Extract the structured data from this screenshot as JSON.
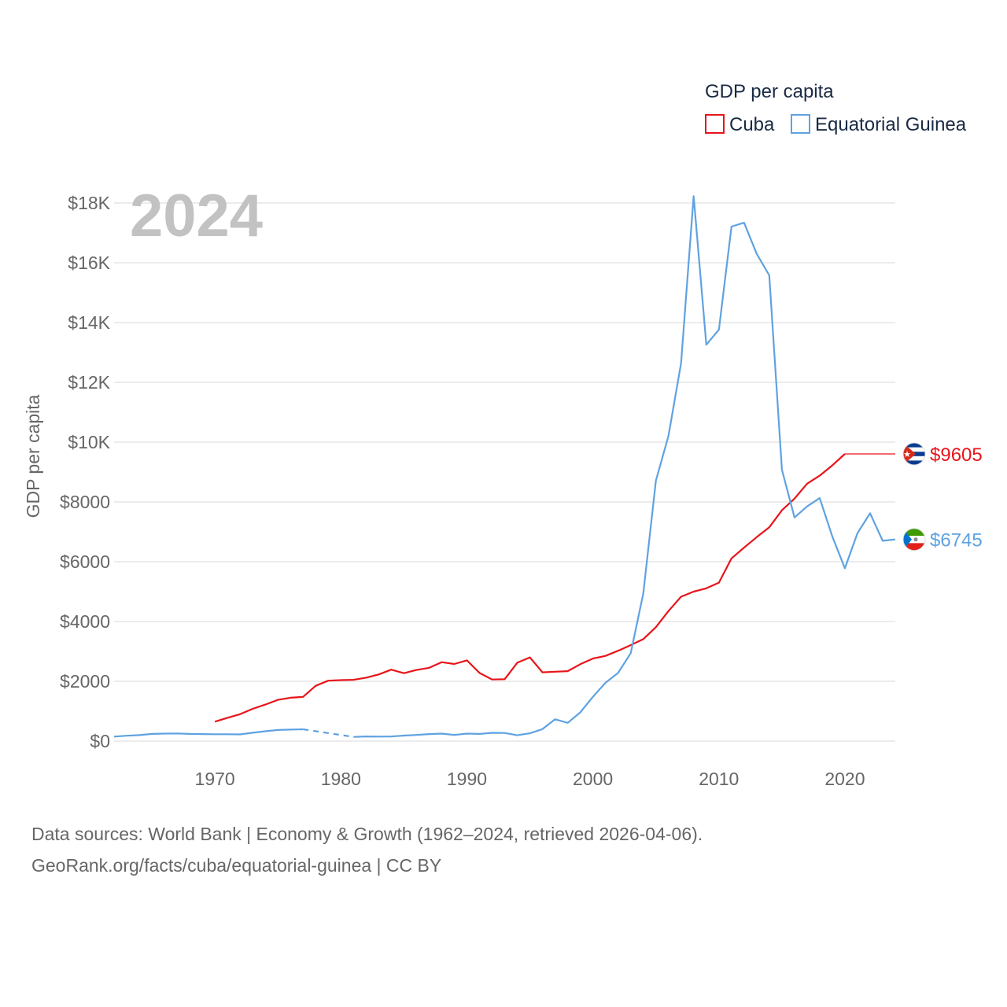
{
  "chart_data": {
    "type": "line",
    "title": "GDP per capita",
    "ylabel": "GDP per capita",
    "xlabel": "",
    "watermark_year": "2024",
    "xlim": [
      1962,
      2024
    ],
    "ylim": [
      0,
      18000
    ],
    "x_ticks": [
      1970,
      1980,
      1990,
      2000,
      2010,
      2020
    ],
    "y_ticks": [
      {
        "value": 0,
        "label": "$0"
      },
      {
        "value": 2000,
        "label": "$2000"
      },
      {
        "value": 4000,
        "label": "$4000"
      },
      {
        "value": 6000,
        "label": "$6000"
      },
      {
        "value": 8000,
        "label": "$8000"
      },
      {
        "value": 10000,
        "label": "$10K"
      },
      {
        "value": 12000,
        "label": "$12K"
      },
      {
        "value": 14000,
        "label": "$14K"
      },
      {
        "value": 16000,
        "label": "$16K"
      },
      {
        "value": 18000,
        "label": "$18K"
      }
    ],
    "grid": true,
    "legend_position": "top-right",
    "series": [
      {
        "name": "Cuba",
        "color": "#e8141a",
        "end_label": "$9605",
        "flag_icon": "cuba-flag-icon",
        "x": [
          1970,
          1971,
          1972,
          1973,
          1974,
          1975,
          1976,
          1977,
          1978,
          1979,
          1980,
          1981,
          1982,
          1983,
          1984,
          1985,
          1986,
          1987,
          1988,
          1989,
          1990,
          1991,
          1992,
          1993,
          1994,
          1995,
          1996,
          1997,
          1998,
          1999,
          2000,
          2001,
          2002,
          2003,
          2004,
          2005,
          2006,
          2007,
          2008,
          2009,
          2010,
          2011,
          2012,
          2013,
          2014,
          2015,
          2016,
          2017,
          2018,
          2019,
          2020
        ],
        "values": [
          650,
          780,
          900,
          1080,
          1220,
          1380,
          1450,
          1480,
          1850,
          2020,
          2040,
          2050,
          2120,
          2230,
          2390,
          2270,
          2380,
          2450,
          2640,
          2580,
          2700,
          2280,
          2060,
          2070,
          2620,
          2800,
          2300,
          2320,
          2340,
          2570,
          2760,
          2850,
          3020,
          3210,
          3410,
          3810,
          4350,
          4830,
          5000,
          5110,
          5300,
          6110,
          6470,
          6820,
          7150,
          7720,
          8110,
          8610,
          8880,
          9220,
          9605
        ],
        "extend_to": 2024
      },
      {
        "name": "Equatorial Guinea",
        "color": "#5fa2e1",
        "end_label": "$6745",
        "flag_icon": "equatorial-guinea-flag-icon",
        "x": [
          1962,
          1963,
          1964,
          1965,
          1966,
          1967,
          1968,
          1969,
          1970,
          1971,
          1972,
          1973,
          1974,
          1975,
          1976,
          1977,
          1981,
          1982,
          1983,
          1984,
          1985,
          1986,
          1987,
          1988,
          1989,
          1990,
          1991,
          1992,
          1993,
          1994,
          1995,
          1996,
          1997,
          1998,
          1999,
          2000,
          2001,
          2002,
          2003,
          2004,
          2005,
          2006,
          2007,
          2008,
          2009,
          2010,
          2011,
          2012,
          2013,
          2014,
          2015,
          2016,
          2017,
          2018,
          2019,
          2020,
          2021,
          2022,
          2023,
          2024
        ],
        "values": [
          150,
          180,
          200,
          240,
          250,
          255,
          240,
          235,
          230,
          228,
          225,
          280,
          330,
          370,
          385,
          395,
          140,
          155,
          150,
          155,
          185,
          205,
          235,
          250,
          205,
          250,
          240,
          275,
          270,
          195,
          260,
          400,
          730,
          610,
          960,
          1480,
          1950,
          2280,
          2940,
          4940,
          8710,
          10210,
          12640,
          18230,
          13260,
          13760,
          17210,
          17340,
          16300,
          15580,
          9080,
          7480,
          7850,
          8130,
          6850,
          5780,
          6960,
          7620,
          6700,
          6745
        ],
        "gap_after": 1977
      }
    ]
  },
  "legend": {
    "title": "GDP per capita",
    "items": [
      "Cuba",
      "Equatorial Guinea"
    ]
  },
  "footer": {
    "line1": "Data sources: World Bank | Economy & Growth (1962–2024, retrieved 2026-04-06).",
    "line2": "GeoRank.org/facts/cuba/equatorial-guinea | CC BY"
  },
  "colors": {
    "cuba": "#e8141a",
    "equatorial_guinea": "#5fa2e1",
    "grid": "#e6e6e6",
    "text": "#666666",
    "legend_text": "#1a2a44",
    "watermark": "#c2c2c2"
  }
}
